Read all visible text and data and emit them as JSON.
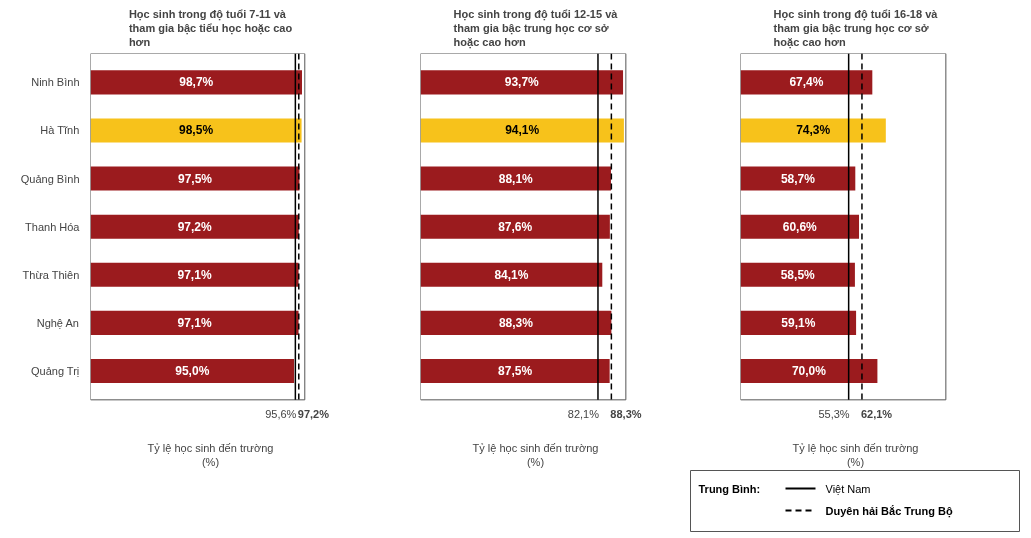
{
  "chart_data": [
    {
      "type": "bar",
      "orientation": "horizontal",
      "title": "Học sinh trong độ tuổi 7-11 và tham gia bậc tiểu học hoặc cao hơn",
      "xlabel": "Tỷ lệ học sinh đến trường\n(%)",
      "categories": [
        "Ninh Bình",
        "Hà Tĩnh",
        "Quảng Bình",
        "Thanh Hóa",
        "Thừa Thiên",
        "Nghệ An",
        "Quảng Trị"
      ],
      "values": [
        98.7,
        98.5,
        97.5,
        97.2,
        97.1,
        97.1,
        95.0
      ],
      "value_labels": [
        "98,7%",
        "98,5%",
        "97,5%",
        "97,2%",
        "97,1%",
        "97,1%",
        "95,0%"
      ],
      "colors": [
        "#9b1b1e",
        "#f7c21b",
        "#9b1b1e",
        "#9b1b1e",
        "#9b1b1e",
        "#9b1b1e",
        "#9b1b1e"
      ],
      "xlim": [
        0,
        100
      ],
      "tick_labels": "y",
      "grid": false,
      "ref_lines": [
        {
          "axis": "x",
          "value": 95.6,
          "label": "95,6%",
          "color": "#000000",
          "line_style": "solid"
        },
        {
          "axis": "x",
          "value": 97.2,
          "label": "97,2%",
          "color": "#000000",
          "line_style": "dashed"
        }
      ]
    },
    {
      "type": "bar",
      "orientation": "horizontal",
      "title": "Học sinh trong độ tuổi 12-15 và tham gia bậc trung học cơ sở hoặc cao hơn",
      "xlabel": "Tỷ lệ học sinh đến trường\n(%)",
      "categories": [
        null,
        null,
        null,
        null,
        null,
        null,
        null
      ],
      "values": [
        93.7,
        94.1,
        88.1,
        87.6,
        84.1,
        88.3,
        87.5
      ],
      "value_labels": [
        "93,7%",
        "94,1%",
        "88,1%",
        "87,6%",
        "84,1%",
        "88,3%",
        "87,5%"
      ],
      "colors": [
        "#9b1b1e",
        "#f7c21b",
        "#9b1b1e",
        "#9b1b1e",
        "#9b1b1e",
        "#9b1b1e",
        "#9b1b1e"
      ],
      "xlim": [
        0,
        95
      ],
      "tick_labels": false,
      "grid": false,
      "ref_lines": [
        {
          "axis": "x",
          "value": 82.1,
          "label": "82,1%",
          "color": "#000000",
          "line_style": "solid"
        },
        {
          "axis": "x",
          "value": 88.3,
          "label": "88,3%",
          "color": "#000000",
          "line_style": "dashed"
        }
      ]
    },
    {
      "type": "bar",
      "orientation": "horizontal",
      "title": "Học sinh trong độ tuổi 16-18 và tham gia bậc trung học cơ sở hoặc cao hơn",
      "xlabel": "Tỷ lệ học sinh đến trường\n(%)",
      "categories": [
        null,
        null,
        null,
        null,
        null,
        null,
        null
      ],
      "values": [
        67.4,
        74.3,
        58.7,
        60.6,
        58.5,
        59.1,
        70.0
      ],
      "value_labels": [
        "67,4%",
        "74,3%",
        "58,7%",
        "60,6%",
        "58,5%",
        "59,1%",
        "70,0%"
      ],
      "colors": [
        "#9b1b1e",
        "#f7c21b",
        "#9b1b1e",
        "#9b1b1e",
        "#9b1b1e",
        "#9b1b1e",
        "#9b1b1e"
      ],
      "xlim": [
        0,
        105
      ],
      "tick_labels": false,
      "grid": false,
      "ref_lines": [
        {
          "axis": "x",
          "value": 55.3,
          "label": "55,3%",
          "color": "#000000",
          "line_style": "solid"
        },
        {
          "axis": "x",
          "value": 62.1,
          "label": "62,1%",
          "color": "#000000",
          "line_style": "dashed"
        }
      ]
    },
    {
      "type": "other",
      "title": "Trung Bình:",
      "annotations": [
        "Việt Nam",
        "Duyên hải Bắc Trung Bộ"
      ]
    }
  ]
}
